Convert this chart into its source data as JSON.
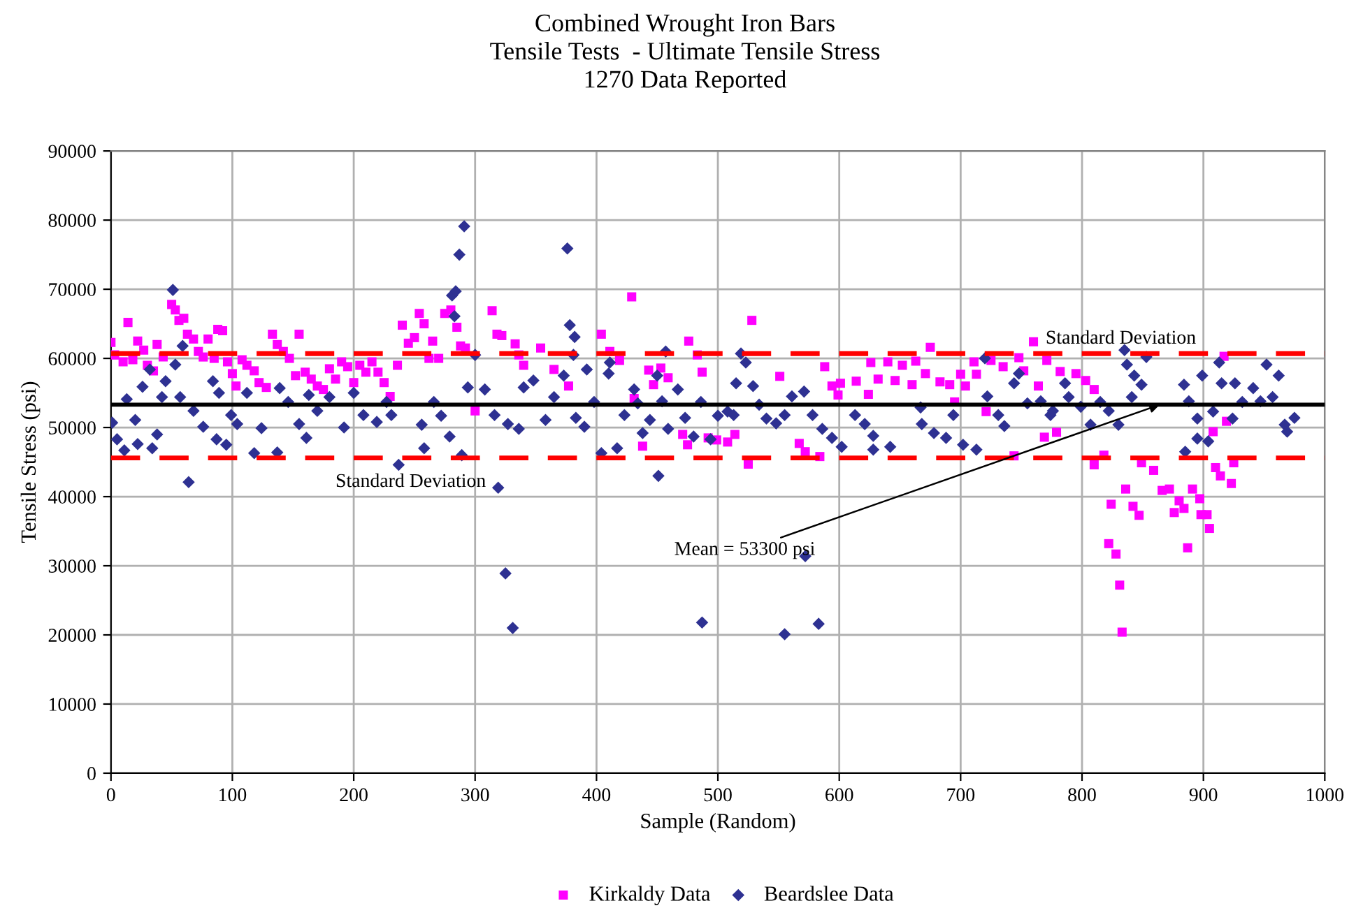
{
  "chart_data": {
    "type": "scatter",
    "title": "Combined Wrought Iron Bars\nTensile Tests  - Ultimate Tensile Stress\n1270 Data Reported",
    "xlabel": "Sample (Random)",
    "ylabel": "Tensile Stress (psi)",
    "xlim": [
      0,
      1000
    ],
    "xticks": [
      0,
      100,
      200,
      300,
      400,
      500,
      600,
      700,
      800,
      900,
      1000
    ],
    "ylim": [
      0,
      90000
    ],
    "yticks": [
      0,
      10000,
      20000,
      30000,
      40000,
      50000,
      60000,
      70000,
      80000,
      90000
    ],
    "grid": true,
    "legend": "bottom",
    "series": [
      {
        "name": "Kirkaldy Data",
        "color": "#ff00ff",
        "marker": "square",
        "x": [
          0,
          3,
          10,
          14,
          18,
          22,
          27,
          30,
          35,
          38,
          43,
          50,
          53,
          56,
          60,
          63,
          68,
          72,
          76,
          80,
          85,
          88,
          92,
          96,
          100,
          103,
          108,
          112,
          118,
          122,
          128,
          133,
          137,
          142,
          147,
          152,
          155,
          160,
          165,
          170,
          175,
          180,
          185,
          190,
          195,
          200,
          205,
          210,
          215,
          220,
          225,
          230,
          236,
          240,
          245,
          250,
          254,
          258,
          262,
          265,
          270,
          275,
          280,
          285,
          288,
          292,
          300,
          314,
          318,
          322,
          333,
          336,
          340,
          354,
          365,
          377,
          404,
          411,
          419,
          429,
          431,
          438,
          443,
          447,
          453,
          459,
          471,
          475,
          476,
          483,
          487,
          492,
          499,
          508,
          514,
          525,
          528,
          551,
          567,
          572,
          584,
          588,
          594,
          599,
          601,
          614,
          624,
          626,
          632,
          640,
          646,
          652,
          660,
          663,
          671,
          675,
          683,
          691,
          695,
          700,
          704,
          711,
          713,
          721,
          725,
          735,
          744,
          748,
          752,
          760,
          764,
          769,
          771,
          779,
          782,
          795,
          803,
          810,
          810,
          818,
          822,
          824,
          828,
          831,
          833,
          836,
          842,
          847,
          849,
          859,
          866,
          872,
          876,
          880,
          884,
          887,
          891,
          897,
          898,
          903,
          905,
          908,
          910,
          914,
          917,
          919,
          923,
          925
        ],
        "values": [
          62300,
          60500,
          59500,
          65200,
          59800,
          62500,
          61200,
          59000,
          58200,
          62000,
          60200,
          67800,
          67000,
          65500,
          65800,
          63500,
          62800,
          61000,
          60200,
          62800,
          60000,
          64200,
          64000,
          59500,
          57800,
          56000,
          59800,
          59000,
          58200,
          56500,
          55800,
          63500,
          62000,
          61000,
          60000,
          57500,
          63500,
          58000,
          57000,
          56000,
          55500,
          58500,
          57000,
          59500,
          58800,
          56500,
          59000,
          58000,
          59500,
          58000,
          56500,
          54500,
          59000,
          64800,
          62200,
          63000,
          66500,
          65000,
          60000,
          62500,
          60000,
          66500,
          67000,
          64500,
          61800,
          61500,
          52400,
          66900,
          63500,
          63300,
          62100,
          60500,
          59000,
          61500,
          58400,
          56000,
          63500,
          61000,
          59700,
          68900,
          54200,
          47300,
          58300,
          56200,
          58600,
          57200,
          49000,
          47500,
          62500,
          60500,
          58000,
          48500,
          48200,
          47900,
          49000,
          44700,
          65500,
          57400,
          47700,
          46500,
          45800,
          58800,
          56000,
          54700,
          56400,
          56700,
          54800,
          59400,
          57000,
          59500,
          56800,
          59000,
          56200,
          59600,
          57800,
          61600,
          56600,
          56200,
          53700,
          57700,
          56000,
          59500,
          57700,
          52300,
          59700,
          58800,
          45900,
          60100,
          58200,
          62400,
          56000,
          48600,
          59700,
          49300,
          58100,
          57800,
          56800,
          44600,
          55500,
          46000,
          33200,
          38900,
          31700,
          27200,
          20400,
          41100,
          38600,
          37300,
          44900,
          43800,
          40900,
          41100,
          37700,
          39400,
          38300,
          32600,
          41100,
          39700,
          37400,
          37400,
          35400,
          49400,
          44200,
          43000,
          60300,
          50900,
          41900,
          44900
        ]
      },
      {
        "name": "Beardslee Data",
        "color": "#2e3192",
        "marker": "diamond",
        "x": [
          1,
          5,
          11,
          13,
          20,
          22,
          26,
          32,
          34,
          38,
          42,
          45,
          51,
          53,
          57,
          59,
          64,
          68,
          76,
          84,
          87,
          89,
          95,
          99,
          104,
          112,
          118,
          124,
          137,
          139,
          146,
          155,
          161,
          163,
          170,
          180,
          192,
          200,
          208,
          219,
          227,
          231,
          237,
          256,
          258,
          266,
          272,
          279,
          281,
          284,
          283,
          287,
          289,
          291,
          294,
          300,
          308,
          316,
          319,
          325,
          327,
          331,
          336,
          340,
          348,
          358,
          365,
          373,
          376,
          378,
          381,
          382,
          383,
          390,
          392,
          398,
          404,
          410,
          411,
          417,
          423,
          431,
          434,
          438,
          444,
          450,
          451,
          454,
          457,
          459,
          467,
          473,
          480,
          486,
          487,
          494,
          500,
          508,
          513,
          515,
          519,
          523,
          529,
          534,
          540,
          548,
          555,
          555,
          561,
          571,
          572,
          578,
          583,
          586,
          594,
          602,
          613,
          621,
          628,
          628,
          642,
          667,
          668,
          678,
          688,
          694,
          702,
          713,
          720,
          722,
          731,
          736,
          744,
          748,
          755,
          766,
          774,
          776,
          786,
          789,
          799,
          807,
          815,
          822,
          830,
          835,
          837,
          841,
          843,
          849,
          853,
          884,
          885,
          888,
          895,
          895,
          899,
          904,
          908,
          913,
          915,
          924,
          926,
          932,
          941,
          947,
          952,
          957,
          962,
          967,
          969,
          975
        ],
        "values": [
          50700,
          48300,
          46700,
          54100,
          51100,
          47600,
          55900,
          58400,
          47000,
          49000,
          54400,
          56700,
          69900,
          59100,
          54400,
          61800,
          42100,
          52400,
          50100,
          56700,
          48300,
          55000,
          47500,
          51800,
          50500,
          55000,
          46300,
          49900,
          46400,
          55700,
          53700,
          50500,
          48500,
          54700,
          52400,
          54400,
          50000,
          55000,
          51800,
          50800,
          53700,
          51800,
          44600,
          50400,
          47000,
          53700,
          51700,
          48700,
          69100,
          69700,
          66100,
          75000,
          46000,
          79100,
          55800,
          60500,
          55500,
          51800,
          41300,
          28900,
          50500,
          21000,
          49800,
          55800,
          56800,
          51100,
          54400,
          57500,
          75900,
          64800,
          60500,
          63100,
          51400,
          50100,
          58400,
          53700,
          46300,
          57800,
          59400,
          47000,
          51800,
          55500,
          53500,
          49200,
          51100,
          57500,
          43000,
          53800,
          61000,
          49800,
          55500,
          51400,
          48700,
          53700,
          21800,
          48300,
          51700,
          52300,
          51800,
          56400,
          60700,
          59400,
          56000,
          53300,
          51300,
          50600,
          51800,
          20100,
          54500,
          55200,
          31400,
          51800,
          21600,
          49800,
          48500,
          47200,
          51800,
          50500,
          48800,
          46800,
          47200,
          52900,
          50500,
          49200,
          48500,
          51800,
          47500,
          46800,
          60000,
          54500,
          51800,
          50200,
          56400,
          57800,
          53500,
          53800,
          51800,
          52400,
          56400,
          54400,
          53000,
          50400,
          53700,
          52400,
          50400,
          61200,
          59100,
          54400,
          57500,
          56200,
          60200,
          56200,
          46500,
          53800,
          51300,
          48400,
          57500,
          48000,
          52300,
          59400,
          56400,
          51300,
          56400,
          53700,
          55700,
          53800,
          59100,
          54400,
          57500,
          50400,
          49400,
          51400
        ]
      }
    ],
    "ref_lines": [
      {
        "axis": "y",
        "value": 53300,
        "color": "#000000",
        "line_style": "solid"
      },
      {
        "axis": "y",
        "value": 60700,
        "color": "#ff0000",
        "line_style": "dashed",
        "label": "Standard Deviation"
      },
      {
        "axis": "y",
        "value": 45600,
        "color": "#ff0000",
        "line_style": "dashed",
        "label": "Standard Deviation"
      }
    ],
    "annotations": [
      {
        "text": "Mean = 53300 psi",
        "x": 864,
        "y": 53300
      }
    ]
  }
}
